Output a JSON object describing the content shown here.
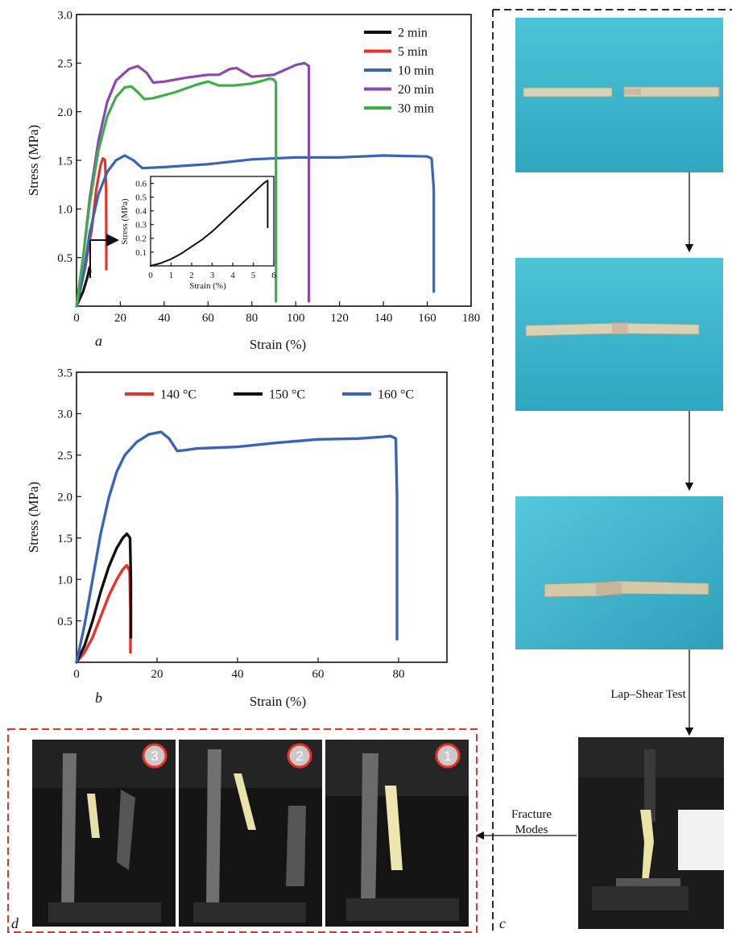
{
  "panels": {
    "a": "a",
    "b": "b",
    "c": "c",
    "d": "d"
  },
  "photo_labels": {
    "lap_shear": "Lap–Shear Test",
    "fracture_line1": "Fracture",
    "fracture_line2": "Modes",
    "steps": [
      "3",
      "2",
      "1"
    ]
  },
  "colors": {
    "black": "#111111",
    "red": "#e8312a",
    "blue": "#3a64b8",
    "purple": "#8a48b0",
    "green": "#3eae4a",
    "dashed_red": "#e8312a",
    "photo_bg": "#3fb8cc"
  },
  "chart_data": [
    {
      "type": "line",
      "panel": "a",
      "xlabel": "Strain (%)",
      "ylabel": "Stress (MPa)",
      "xlim": [
        0,
        180
      ],
      "ylim": [
        0,
        3.0
      ],
      "xticks": [
        0,
        20,
        40,
        60,
        80,
        100,
        120,
        140,
        160,
        180
      ],
      "yticks": [
        0.5,
        1.0,
        1.5,
        2.0,
        2.5,
        3.0
      ],
      "legend_position": "top-right",
      "series": [
        {
          "name": "2 min",
          "color": "#111111",
          "points": [
            [
              0,
              0
            ],
            [
              3,
              0.15
            ],
            [
              5,
              0.3
            ],
            [
              6,
              0.4
            ],
            [
              6.2,
              0.35
            ]
          ]
        },
        {
          "name": "5 min",
          "color": "#e8312a",
          "points": [
            [
              0,
              0
            ],
            [
              4,
              0.4
            ],
            [
              7,
              0.8
            ],
            [
              9,
              1.2
            ],
            [
              11,
              1.45
            ],
            [
              12,
              1.52
            ],
            [
              13,
              1.5
            ],
            [
              13.5,
              1.2
            ],
            [
              13.6,
              0.6
            ],
            [
              13.6,
              0.38
            ]
          ]
        },
        {
          "name": "10 min",
          "color": "#3a64b8",
          "points": [
            [
              0,
              0
            ],
            [
              3,
              0.3
            ],
            [
              6,
              0.75
            ],
            [
              10,
              1.15
            ],
            [
              14,
              1.38
            ],
            [
              18,
              1.5
            ],
            [
              22,
              1.55
            ],
            [
              26,
              1.5
            ],
            [
              30,
              1.42
            ],
            [
              40,
              1.43
            ],
            [
              60,
              1.46
            ],
            [
              80,
              1.51
            ],
            [
              100,
              1.53
            ],
            [
              120,
              1.53
            ],
            [
              140,
              1.55
            ],
            [
              160,
              1.54
            ],
            [
              162,
              1.52
            ],
            [
              163,
              1.2
            ],
            [
              163,
              0.15
            ]
          ]
        },
        {
          "name": "20 min",
          "color": "#8a48b0",
          "points": [
            [
              0,
              0
            ],
            [
              3,
              0.5
            ],
            [
              6,
              1.1
            ],
            [
              10,
              1.7
            ],
            [
              14,
              2.1
            ],
            [
              18,
              2.32
            ],
            [
              24,
              2.44
            ],
            [
              28,
              2.47
            ],
            [
              32,
              2.4
            ],
            [
              35,
              2.3
            ],
            [
              40,
              2.31
            ],
            [
              50,
              2.35
            ],
            [
              60,
              2.38
            ],
            [
              65,
              2.38
            ],
            [
              70,
              2.44
            ],
            [
              73,
              2.45
            ],
            [
              76,
              2.41
            ],
            [
              80,
              2.36
            ],
            [
              90,
              2.38
            ],
            [
              95,
              2.43
            ],
            [
              100,
              2.48
            ],
            [
              104,
              2.5
            ],
            [
              106,
              2.47
            ],
            [
              106,
              0.05
            ]
          ]
        },
        {
          "name": "30 min",
          "color": "#3eae4a",
          "points": [
            [
              0,
              0
            ],
            [
              3,
              0.5
            ],
            [
              6,
              1.05
            ],
            [
              10,
              1.6
            ],
            [
              14,
              1.95
            ],
            [
              18,
              2.15
            ],
            [
              22,
              2.25
            ],
            [
              25,
              2.26
            ],
            [
              28,
              2.2
            ],
            [
              31,
              2.13
            ],
            [
              35,
              2.14
            ],
            [
              45,
              2.2
            ],
            [
              55,
              2.28
            ],
            [
              60,
              2.31
            ],
            [
              65,
              2.27
            ],
            [
              72,
              2.27
            ],
            [
              80,
              2.29
            ],
            [
              85,
              2.32
            ],
            [
              88,
              2.34
            ],
            [
              90,
              2.33
            ],
            [
              91,
              2.3
            ],
            [
              91,
              0.05
            ]
          ]
        }
      ],
      "inset": {
        "xlabel": "Strain (%)",
        "ylabel": "Stress (MPa)",
        "xlim": [
          0,
          6
        ],
        "ylim": [
          0,
          0.65
        ],
        "xticks": [
          0,
          1,
          2,
          3,
          4,
          5,
          6
        ],
        "yticks": [
          0.1,
          0.2,
          0.3,
          0.4,
          0.5,
          0.6
        ],
        "series": [
          {
            "name": "2 min",
            "color": "#111111",
            "points": [
              [
                0,
                0
              ],
              [
                0.5,
                0.02
              ],
              [
                1,
                0.05
              ],
              [
                1.5,
                0.09
              ],
              [
                2,
                0.14
              ],
              [
                2.5,
                0.19
              ],
              [
                3,
                0.25
              ],
              [
                3.5,
                0.32
              ],
              [
                4,
                0.39
              ],
              [
                4.5,
                0.46
              ],
              [
                5,
                0.53
              ],
              [
                5.5,
                0.6
              ],
              [
                5.7,
                0.62
              ],
              [
                5.7,
                0.28
              ]
            ]
          }
        ]
      }
    },
    {
      "type": "line",
      "panel": "b",
      "xlabel": "Strain (%)",
      "ylabel": "Stress (MPa)",
      "xlim": [
        0,
        92
      ],
      "ylim": [
        0,
        3.5
      ],
      "xticks": [
        0,
        20,
        40,
        60,
        80
      ],
      "yticks": [
        0.5,
        1.0,
        1.5,
        2.0,
        2.5,
        3.0,
        3.5
      ],
      "legend_position": "top",
      "series": [
        {
          "name": "140 °C",
          "color": "#e8312a",
          "points": [
            [
              0,
              0
            ],
            [
              2,
              0.12
            ],
            [
              4,
              0.3
            ],
            [
              6,
              0.55
            ],
            [
              8,
              0.8
            ],
            [
              10,
              1.0
            ],
            [
              11.5,
              1.12
            ],
            [
              12.5,
              1.17
            ],
            [
              13.2,
              1.1
            ],
            [
              13.4,
              0.6
            ],
            [
              13.4,
              0.12
            ]
          ]
        },
        {
          "name": "150 °C",
          "color": "#111111",
          "points": [
            [
              0,
              0
            ],
            [
              2,
              0.2
            ],
            [
              4,
              0.5
            ],
            [
              6,
              0.85
            ],
            [
              8,
              1.15
            ],
            [
              10,
              1.38
            ],
            [
              11.5,
              1.5
            ],
            [
              12.5,
              1.55
            ],
            [
              13.3,
              1.5
            ],
            [
              13.5,
              1.0
            ],
            [
              13.5,
              0.3
            ]
          ]
        },
        {
          "name": "160 °C",
          "color": "#3a64b8",
          "points": [
            [
              0,
              0
            ],
            [
              2,
              0.45
            ],
            [
              4,
              1.0
            ],
            [
              6,
              1.55
            ],
            [
              8,
              1.98
            ],
            [
              10,
              2.3
            ],
            [
              12,
              2.5
            ],
            [
              15,
              2.66
            ],
            [
              18,
              2.75
            ],
            [
              21,
              2.78
            ],
            [
              23,
              2.7
            ],
            [
              25,
              2.55
            ],
            [
              27,
              2.56
            ],
            [
              30,
              2.58
            ],
            [
              40,
              2.6
            ],
            [
              50,
              2.65
            ],
            [
              60,
              2.69
            ],
            [
              70,
              2.7
            ],
            [
              76,
              2.72
            ],
            [
              78,
              2.73
            ],
            [
              79.3,
              2.7
            ],
            [
              79.6,
              2.0
            ],
            [
              79.6,
              0.28
            ]
          ]
        }
      ]
    }
  ]
}
